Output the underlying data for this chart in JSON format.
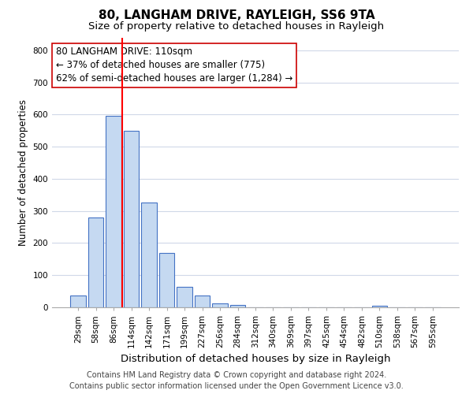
{
  "title": "80, LANGHAM DRIVE, RAYLEIGH, SS6 9TA",
  "subtitle": "Size of property relative to detached houses in Rayleigh",
  "xlabel": "Distribution of detached houses by size in Rayleigh",
  "ylabel": "Number of detached properties",
  "footer_line1": "Contains HM Land Registry data © Crown copyright and database right 2024.",
  "footer_line2": "Contains public sector information licensed under the Open Government Licence v3.0.",
  "bar_labels": [
    "29sqm",
    "58sqm",
    "86sqm",
    "114sqm",
    "142sqm",
    "171sqm",
    "199sqm",
    "227sqm",
    "256sqm",
    "284sqm",
    "312sqm",
    "340sqm",
    "369sqm",
    "397sqm",
    "425sqm",
    "454sqm",
    "482sqm",
    "510sqm",
    "538sqm",
    "567sqm",
    "595sqm"
  ],
  "bar_values": [
    38,
    280,
    595,
    550,
    325,
    170,
    63,
    38,
    13,
    8,
    0,
    0,
    0,
    0,
    0,
    0,
    0,
    5,
    0,
    0,
    0
  ],
  "bar_color": "#c5d9f1",
  "bar_edge_color": "#4472c4",
  "vline_color": "#ff0000",
  "vline_x": 2.5,
  "annotation_line1": "80 LANGHAM DRIVE: 110sqm",
  "annotation_line2": "← 37% of detached houses are smaller (775)",
  "annotation_line3": "62% of semi-detached houses are larger (1,284) →",
  "annotation_box_color": "#ffffff",
  "annotation_box_edgecolor": "#cc0000",
  "ylim": [
    0,
    840
  ],
  "yticks": [
    0,
    100,
    200,
    300,
    400,
    500,
    600,
    700,
    800
  ],
  "title_fontsize": 11,
  "subtitle_fontsize": 9.5,
  "xlabel_fontsize": 9.5,
  "ylabel_fontsize": 8.5,
  "tick_fontsize": 7.5,
  "annotation_fontsize": 8.5,
  "footer_fontsize": 7,
  "background_color": "#ffffff",
  "grid_color": "#d0d8e8"
}
